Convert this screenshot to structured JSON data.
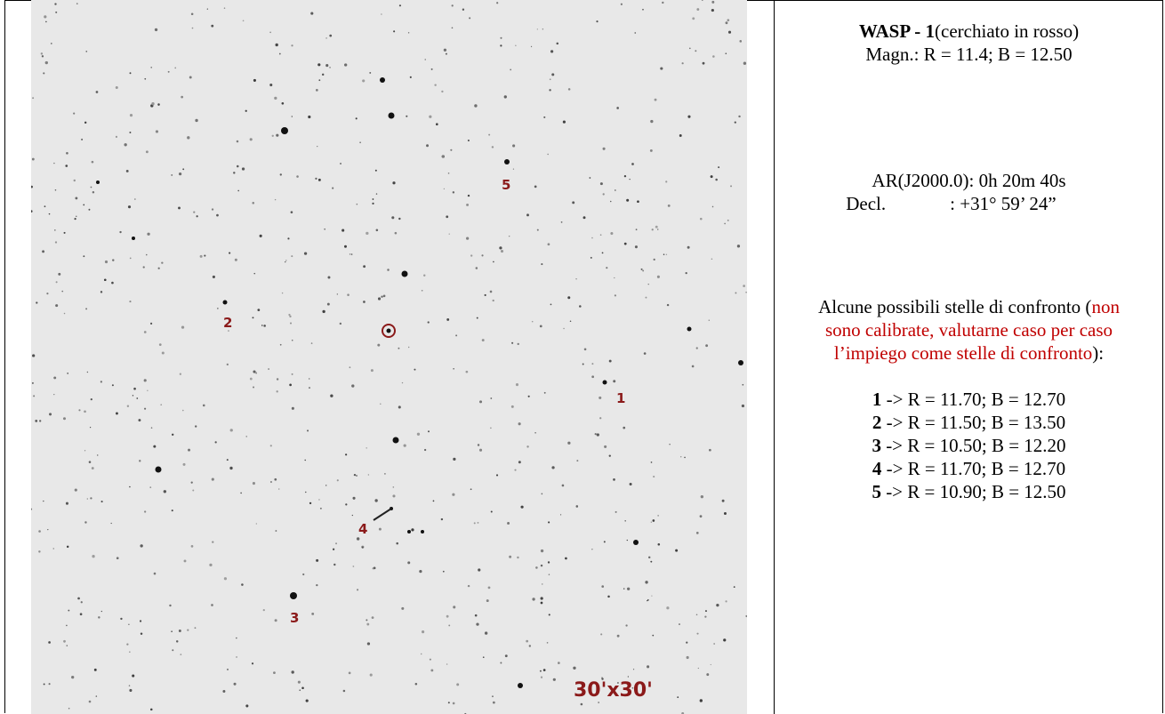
{
  "image": {
    "labels": [
      "1",
      "2",
      "3",
      "4",
      "5"
    ],
    "scale": "30'x30'"
  },
  "info": {
    "title": "WASP - 1",
    "title_note": "(cerchiato in rosso)",
    "magnitudes": "Magn.: R = 11.4; B = 12.50",
    "ra": "AR(J2000.0): 0h 20m 40s",
    "decl_label": "Decl.",
    "decl_value": ": +31° 59’ 24”",
    "intro": "Alcune possibili stelle di confronto (",
    "note": "non sono calibrate, valutarne caso per caso l’impiego come stelle di confronto",
    "intro_end": "):",
    "comparison": [
      {
        "id": "1",
        "text": "-> R = 11.70; B = 12.70"
      },
      {
        "id": "2",
        "text": "-> R = 11.50; B = 13.50"
      },
      {
        "id": "3",
        "text": "-> R = 10.50; B = 12.20"
      },
      {
        "id": "4",
        "text": "-> R = 11.70; B = 12.70"
      },
      {
        "id": "5",
        "text": "-> R = 10.90; B = 12.50"
      }
    ]
  }
}
